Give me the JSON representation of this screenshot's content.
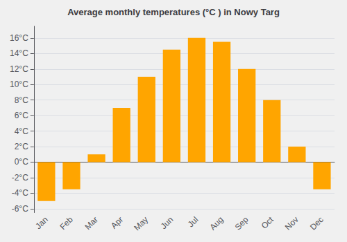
{
  "chart_data": {
    "type": "bar",
    "title": "Average monthly temperatures (°C ) in Nowy Targ",
    "categories": [
      "Jan",
      "Feb",
      "Mar",
      "Apr",
      "May",
      "Jun",
      "Jul",
      "Aug",
      "Sep",
      "Oct",
      "Nov",
      "Dec"
    ],
    "values": [
      -5.0,
      -3.5,
      1.0,
      7.0,
      11.0,
      14.5,
      16.0,
      15.5,
      12.0,
      8.0,
      2.0,
      -3.5
    ],
    "color": "#FFA500",
    "ylim": [
      -6.5,
      17.5
    ],
    "yticks": [
      {
        "value": -6,
        "label": "-6°C"
      },
      {
        "value": -4,
        "label": "-4°C"
      },
      {
        "value": -2,
        "label": "-2°C"
      },
      {
        "value": 0,
        "label": "0°C"
      },
      {
        "value": 2,
        "label": "2°C"
      },
      {
        "value": 4,
        "label": "4°C"
      },
      {
        "value": 6,
        "label": "6°C"
      },
      {
        "value": 8,
        "label": "8°C"
      },
      {
        "value": 10,
        "label": "10°C"
      },
      {
        "value": 12,
        "label": "12°C"
      },
      {
        "value": 14,
        "label": "14°C"
      },
      {
        "value": 16,
        "label": "16°C"
      }
    ],
    "grid": true
  }
}
